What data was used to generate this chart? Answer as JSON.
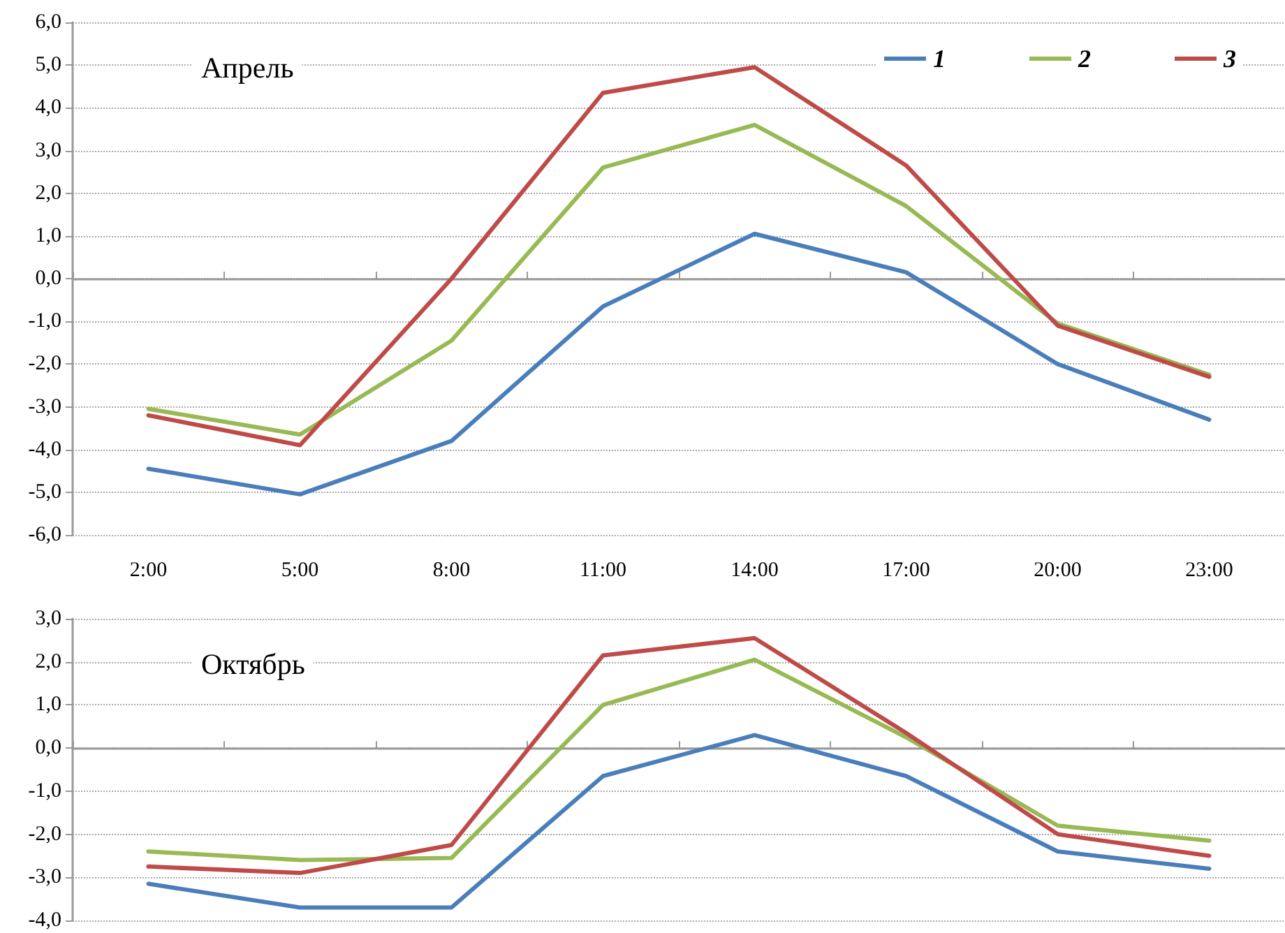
{
  "chart_data": [
    {
      "type": "line",
      "title": "Апрель",
      "categories": [
        "2:00",
        "5:00",
        "8:00",
        "11:00",
        "14:00",
        "17:00",
        "20:00",
        "23:00"
      ],
      "series": [
        {
          "name": "1",
          "color": "#4a7ebb",
          "values": [
            -4.45,
            -5.05,
            -3.8,
            -0.65,
            1.05,
            0.15,
            -2.0,
            -3.3
          ]
        },
        {
          "name": "2",
          "color": "#98b954",
          "values": [
            -3.05,
            -3.65,
            -1.45,
            2.6,
            3.6,
            1.7,
            -1.05,
            -2.25
          ]
        },
        {
          "name": "3",
          "color": "#be4b48",
          "values": [
            -3.2,
            -3.9,
            0.0,
            4.35,
            4.95,
            2.65,
            -1.1,
            -2.3
          ]
        }
      ],
      "ylim": [
        -6,
        6
      ],
      "yticks": [
        {
          "value": -6,
          "label": "-6,0"
        },
        {
          "value": -5,
          "label": "-5,0"
        },
        {
          "value": -4,
          "label": "-4,0"
        },
        {
          "value": -3,
          "label": "-3,0"
        },
        {
          "value": -2,
          "label": "-2,0"
        },
        {
          "value": -1,
          "label": "-1,0"
        },
        {
          "value": 0,
          "label": "0,0"
        },
        {
          "value": 1,
          "label": "1,0"
        },
        {
          "value": 2,
          "label": "2,0"
        },
        {
          "value": 3,
          "label": "3,0"
        },
        {
          "value": 4,
          "label": "4,0"
        },
        {
          "value": 5,
          "label": "5,0"
        },
        {
          "value": 6,
          "label": "6,0"
        }
      ],
      "grid": "y",
      "legend": "top right",
      "marker": "none",
      "line_style": "solid"
    },
    {
      "type": "line",
      "title": "Октябрь",
      "categories": [
        null,
        null,
        null,
        null,
        null,
        null,
        null,
        null
      ],
      "series": [
        {
          "name": "1",
          "color": "#4a7ebb",
          "values": [
            -3.15,
            -3.7,
            -3.7,
            -0.65,
            0.3,
            -0.65,
            -2.4,
            -2.8
          ]
        },
        {
          "name": "2",
          "color": "#98b954",
          "values": [
            -2.4,
            -2.6,
            -2.55,
            1.0,
            2.05,
            0.25,
            -1.8,
            -2.15
          ]
        },
        {
          "name": "3",
          "color": "#be4b48",
          "values": [
            -2.75,
            -2.9,
            -2.25,
            2.15,
            2.55,
            0.35,
            -2.0,
            -2.5
          ]
        }
      ],
      "ylim": [
        -4,
        3
      ],
      "yticks": [
        {
          "value": -4,
          "label": "-4,0"
        },
        {
          "value": -3,
          "label": "-3,0"
        },
        {
          "value": -2,
          "label": "-2,0"
        },
        {
          "value": -1,
          "label": "-1,0"
        },
        {
          "value": 0,
          "label": "0,0"
        },
        {
          "value": 1,
          "label": "1,0"
        },
        {
          "value": 2,
          "label": "2,0"
        },
        {
          "value": 3,
          "label": "3,0"
        }
      ],
      "grid": "y",
      "legend": false,
      "marker": "none",
      "line_style": "solid",
      "tick_labels": "y"
    }
  ]
}
